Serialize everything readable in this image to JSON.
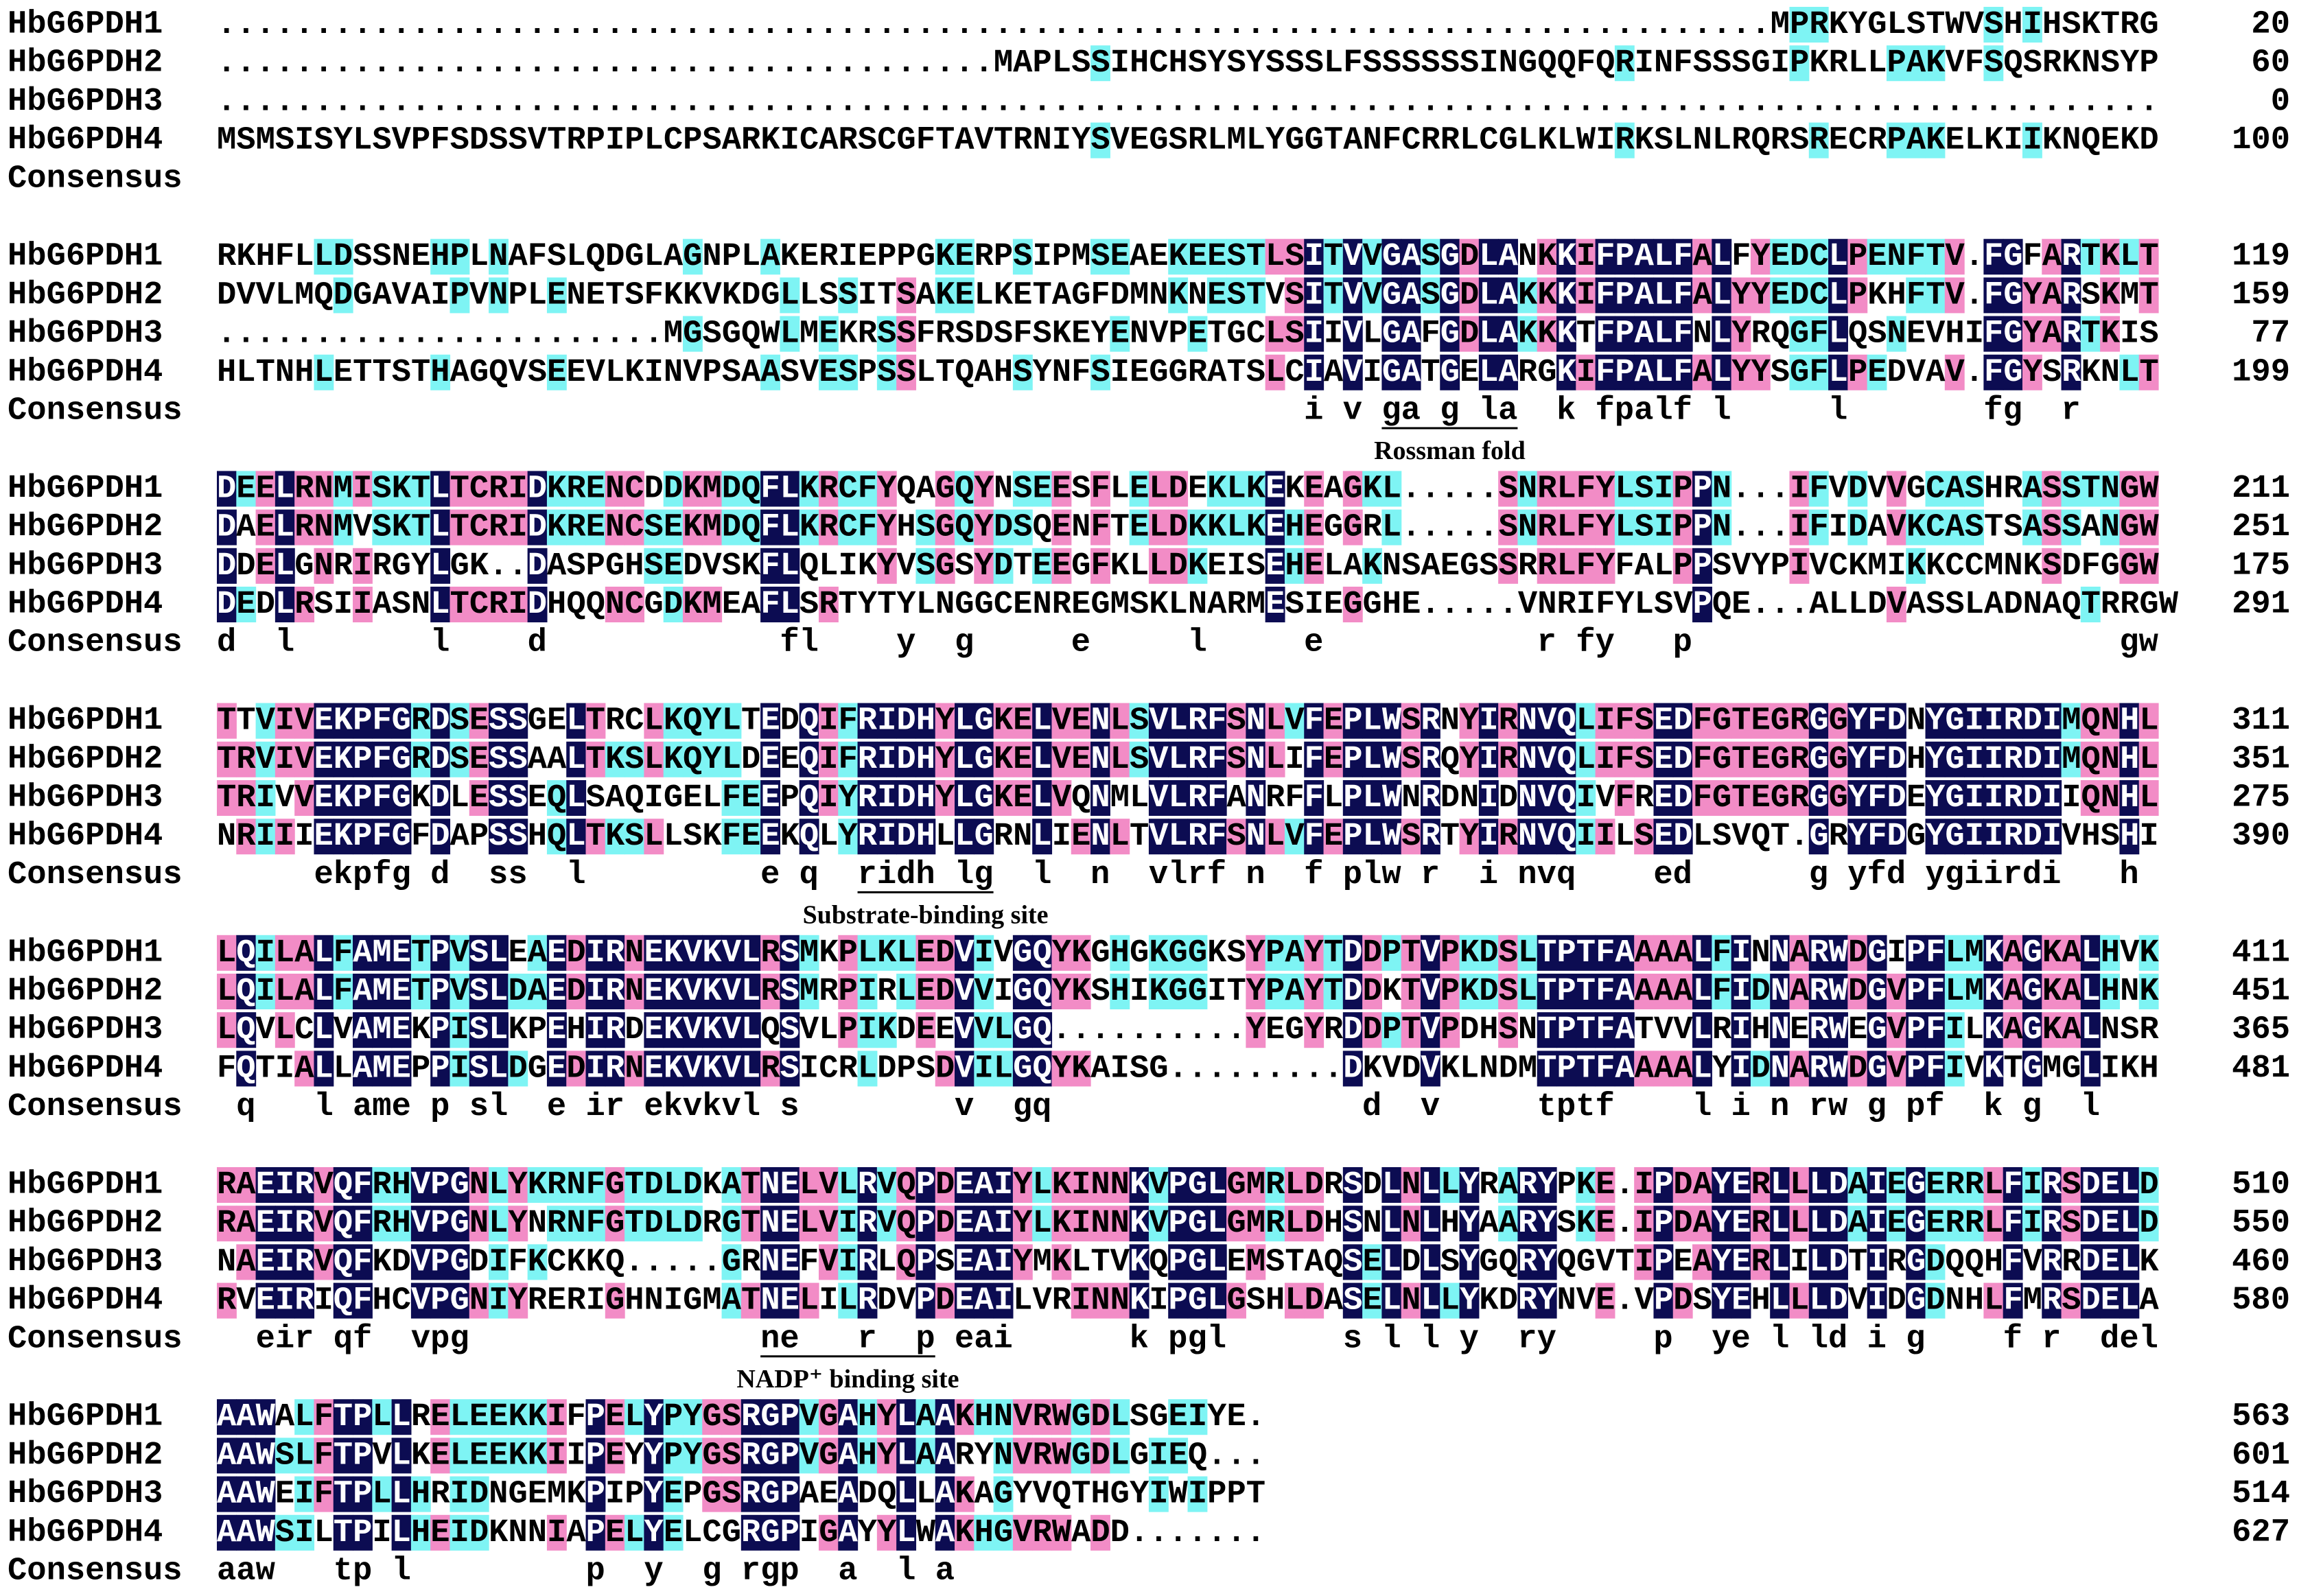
{
  "names": [
    "HbG6PDH1",
    "HbG6PDH2",
    "HbG6PDH3",
    "HbG6PDH4"
  ],
  "consensus_label": "Consensus",
  "blocks": [
    {
      "rows": [
        {
          "seq": "................................................................................MPRKYGLSTWVSHIHSKTRG",
          "end": 20
        },
        {
          "seq": "........................................MAPLSSIHCHSYSYSSSLFSSSSSSINGQQFQRINFSSSGIPKRLLPAKVFSQSRKNSYP",
          "end": 60
        },
        {
          "seq": "....................................................................................................",
          "end": 0
        },
        {
          "seq": "MSMSISYLSVPFSDSSVTRPIPLCPSARKICARSCGFTAVTRNIYSVEGSRLMLYGGTANFCRRLCGLKLWIRKSLNLRQRSRECRPAKELKIIKNQEKD",
          "end": 100
        }
      ]
    },
    {
      "rows": [
        {
          "seq": "RKHFLLDSSNEHPLNAFSLQDGLAGNPLAKERIEPPGKERPSIPMSEAEKEESTLSITVVGASGDLANKKIFPALFALFYEDCLPENFTV.FGFARTKLT",
          "end": 119
        },
        {
          "seq": "DVVLMQDGAVAIPVNPLENETSFKKVKDGLLSSITSAKELKETAGFDMNKNESTVSITVVGASGDLAKKKIFPALFALYYEDCLPKHFTV.FGYARSKMT",
          "end": 159
        },
        {
          "seq": ".......................MGSGQWLMEKRSSFRSDSFSKEYENVPETGCLSIIVLGAFGDLAKKKTFPALFNLYRQGFLQSNEVHIFGYARTKIS",
          "end": 77
        },
        {
          "seq": "HLTNHLETTSTHAGQVSEEVLKINVPSAASVESPSSLTQAHSYNFSIEGGRATSLCIAVIGATGELARGKIFPALFALYYSGFLPEDVAV.FGYSRKNLT",
          "end": 199
        }
      ],
      "consensus": "                                                        i v ga g la  k fpalf l     l       fg  r",
      "annotation": "Rossman fold"
    },
    {
      "rows": [
        {
          "seq": "DEELRNMISKTLTCRIDKRENCDDKMDQFLKRCFYQAGQYNSEESFLELDEKLKEKEAGKL.....SNRLFYLSIPPN...IFVDVVGCASHRASSTNGW",
          "end": 211
        },
        {
          "seq": "DAELRNMVSKTLTCRIDKRENCSEKMDQFLKRCFYHSGQYDSQENFTELDKKLKEHEGGRL.....SNRLFYLSIPPN...IFIDAVKCASTSASSANGW",
          "end": 251
        },
        {
          "seq": "DDELGNRIRGYLGK..DASPGHSEDVSKFLQLIKYVSGSYDTEEGFKLLDKEISEHELAKNSAEGSSRRLFYFALPPSVYPIVCKMIKKCCMNKSDFGGW",
          "end": 175
        },
        {
          "seq": "DEDLRSIIASNLTCRIDHQQNCGDKMEAFLSRTYTYLNGGCENREGMSKLNARMESIEGGHE.....VNRIFYLSVPQE...ALLDVASSLADNAQTRRGW",
          "end": 291
        }
      ],
      "consensus": "d  l       l    d            fl    y  g     e     l     e           r fy   p                      gw"
    },
    {
      "rows": [
        {
          "seq": "TTVIVEKPFGRDSESSGELTRCLKQYLTEDQIFRIDHYLGKELVENLSVLRFSNLVFEPLWSRNYIRNVQLIFSEDFGTEGRGGYFDNYGIIRDIMQNHL",
          "end": 311
        },
        {
          "seq": "TRVIVEKPFGRDSESSAALTKSLKQYLDEEQIFRIDHYLGKELVENLSVLRFSNLIFEPLWSRQYIRNVQLIFSEDFGTEGRGGYFDHYGIIRDIMQNHL",
          "end": 351
        },
        {
          "seq": "TRIVVEKPFGKDLESSEQLSAQIGELFEEPQIYRIDHYLGKELVQNMLVLRFANRFFLPLWNRDNIDNVQIVFREDFGTEGRGGYFDEYGIIRDIIQNHL",
          "end": 275
        },
        {
          "seq": "NRIIIEKPFGFDAPSSHQLTKSLLSKFEEKQLYRIDHLLGRNLIENLTVLRFSNLVFEPLWSRTYIRNVQIILSEDLSVQT.GRYFDGYGIIRDIVHSHI",
          "end": 390
        }
      ],
      "consensus": "     ekpfg d  ss  l         e q  ridh lg  l  n  vlrf n  f plw r  i nvq    ed      g yfd ygiirdi   h",
      "annotation": "Substrate-binding site"
    },
    {
      "rows": [
        {
          "seq": "LQILALFAMETPVSLEAEDIRNEKVKVLRSMKPLKLEDVIVGQYKGHGKGGKSYPAYTDDPTVPKDSLTPTFAAAALFINNARWDGIPFLMKAGKALHVK",
          "end": 411
        },
        {
          "seq": "LQILALFAMETPVSLDAEDIRNEKVKVLRSMRPIRLEDVVIGQYKSHIKGGITYPAYTDDKTVPKDSLTPTFAAAALFIDNARWDGVPFLMKAGKALHNK",
          "end": 451
        },
        {
          "seq": "LQVLCLVAMEKPISLKPEHIRDEKVKVLQSVLPIKDEEVVLGQ..........YEGYRDDPTVPDHSNTPTFATVVLRIHNERWEGVPFILKAGKALNSR",
          "end": 365
        },
        {
          "seq": "FQTIALLAMEPPISLDGEDIRNEKVKVLRSICRLDPSDVILGQYKAISG.........DKVDVKLNDMTPTFAAAALYIDNARWDGVPFIVKTGMGLIKH",
          "end": 481
        }
      ],
      "consensus": " q   l ame p sl  e ir ekvkvl s        v  gq                d  v     tptf    l i n rw g pf  k g  l"
    },
    {
      "rows": [
        {
          "seq": "RAEIRVQFRHVPGNLYKRNFGTDLDKATNELVLRVQPDEAIYLKINNKVPGLGMRLDRSDLNLLYRARYPKE.IPDAYERLLLDAIEGERRLFIRSDELD",
          "end": 510
        },
        {
          "seq": "RAEIRVQFRHVPGNLYNRNFGTDLDRGTNELVIRVQPDEAIYLKINNKVPGLGMRLDHSNLNLHYAARYSKE.IPDAYERLLLDAIEGERRLFIRSDELD",
          "end": 550
        },
        {
          "seq": "NAEIRVQFKDVPGDIFKCKKQ.....GRNEFVIRLQPSEAIYMKLTVKQPGLEMSTAQSELDLSYGQRYQGVTIPEAYERLILDTIRGDQQHFVRRDELK",
          "end": 460
        },
        {
          "seq": "RVEIRIQFHCVPGNIYRERIGHNIGMATNELILRDVPDEAILVRINNKIPGLGSHLDASELNLLYKDRYNVE.VPDSYEHLLLDVIDGDNHLFMRSDELA",
          "end": 580
        }
      ],
      "consensus": "  eir qf  vpg               ne   r  p eai      k pgl      s l l y  ry     p  ye l ld i g    f r  del",
      "annotation": "NADP⁺ binding site"
    },
    {
      "rows": [
        {
          "seq": "AAWALFTPLLRELEEKKIFPELYPYGSRGPVGAHYLAAKHNVRWGDLSGEIYE.",
          "end": 563
        },
        {
          "seq": "AAWSLFTPVLKELEEKKIIPEYYPYGSRGPVGAHYLAARYNVRWGDLGIEQ...",
          "end": 601
        },
        {
          "seq": "AAWEIFTPLLHRIDNGEMKPIPYEPGSRGPAEADQLLAKAGYVQTHGYIWIPPT",
          "end": 514
        },
        {
          "seq": "AAWSILTPILHEIDKNNIAPELYELCGRGPIGAYYLWAKHGVRWADD.......",
          "end": 627
        }
      ],
      "consensus": "aaw   tp l         p  y  g rgp  a  l a"
    }
  ]
}
